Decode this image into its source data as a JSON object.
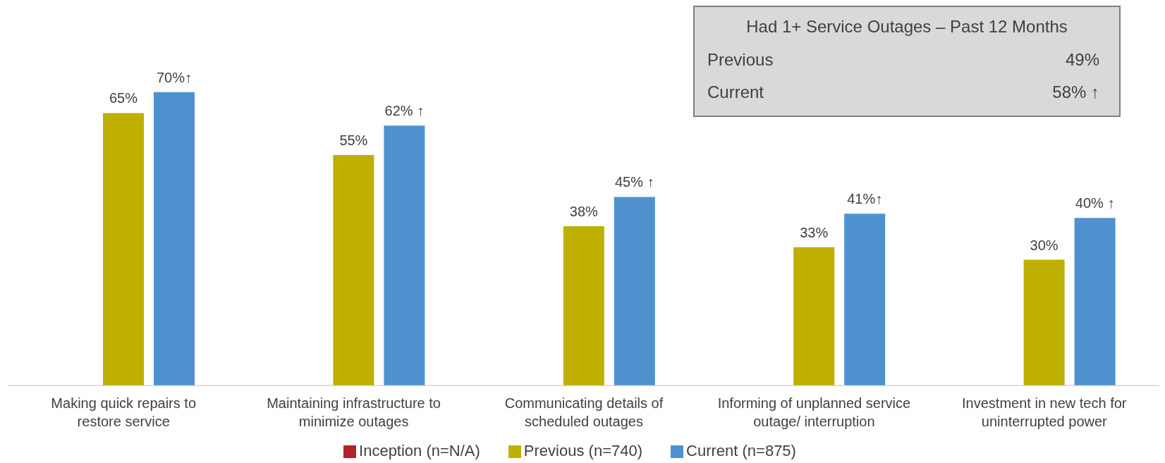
{
  "chart_data": [
    {
      "type": "bar",
      "categories": [
        "Making quick repairs to restore service",
        "Maintaining infrastructure to minimize outages",
        "Communicating details of scheduled outages",
        "Informing of unplanned service outage/ interruption",
        "Investment in new tech for uninterrupted power"
      ],
      "series": [
        {
          "name": "Inception (n=N/A)",
          "color": "#b3222a",
          "values": [
            null,
            null,
            null,
            null,
            null
          ]
        },
        {
          "name": "Previous (n=740)",
          "color": "#bfb000",
          "values": [
            65,
            55,
            38,
            33,
            30
          ],
          "value_labels": [
            "65%",
            "55%",
            "38%",
            "33%",
            "30%"
          ]
        },
        {
          "name": "Current (n=875)",
          "color": "#4f91cf",
          "values": [
            70,
            62,
            45,
            41,
            40
          ],
          "value_labels": [
            "70%↑",
            "62% ↑",
            "45% ↑",
            "41%↑",
            "40% ↑"
          ]
        }
      ],
      "legend": "bottom",
      "grid": false
    },
    {
      "type": "other",
      "title": "Had 1+ Service Outages – Past 12 Months",
      "annotations": [
        "Previous",
        "49%",
        "Current",
        "58% ↑"
      ]
    }
  ]
}
